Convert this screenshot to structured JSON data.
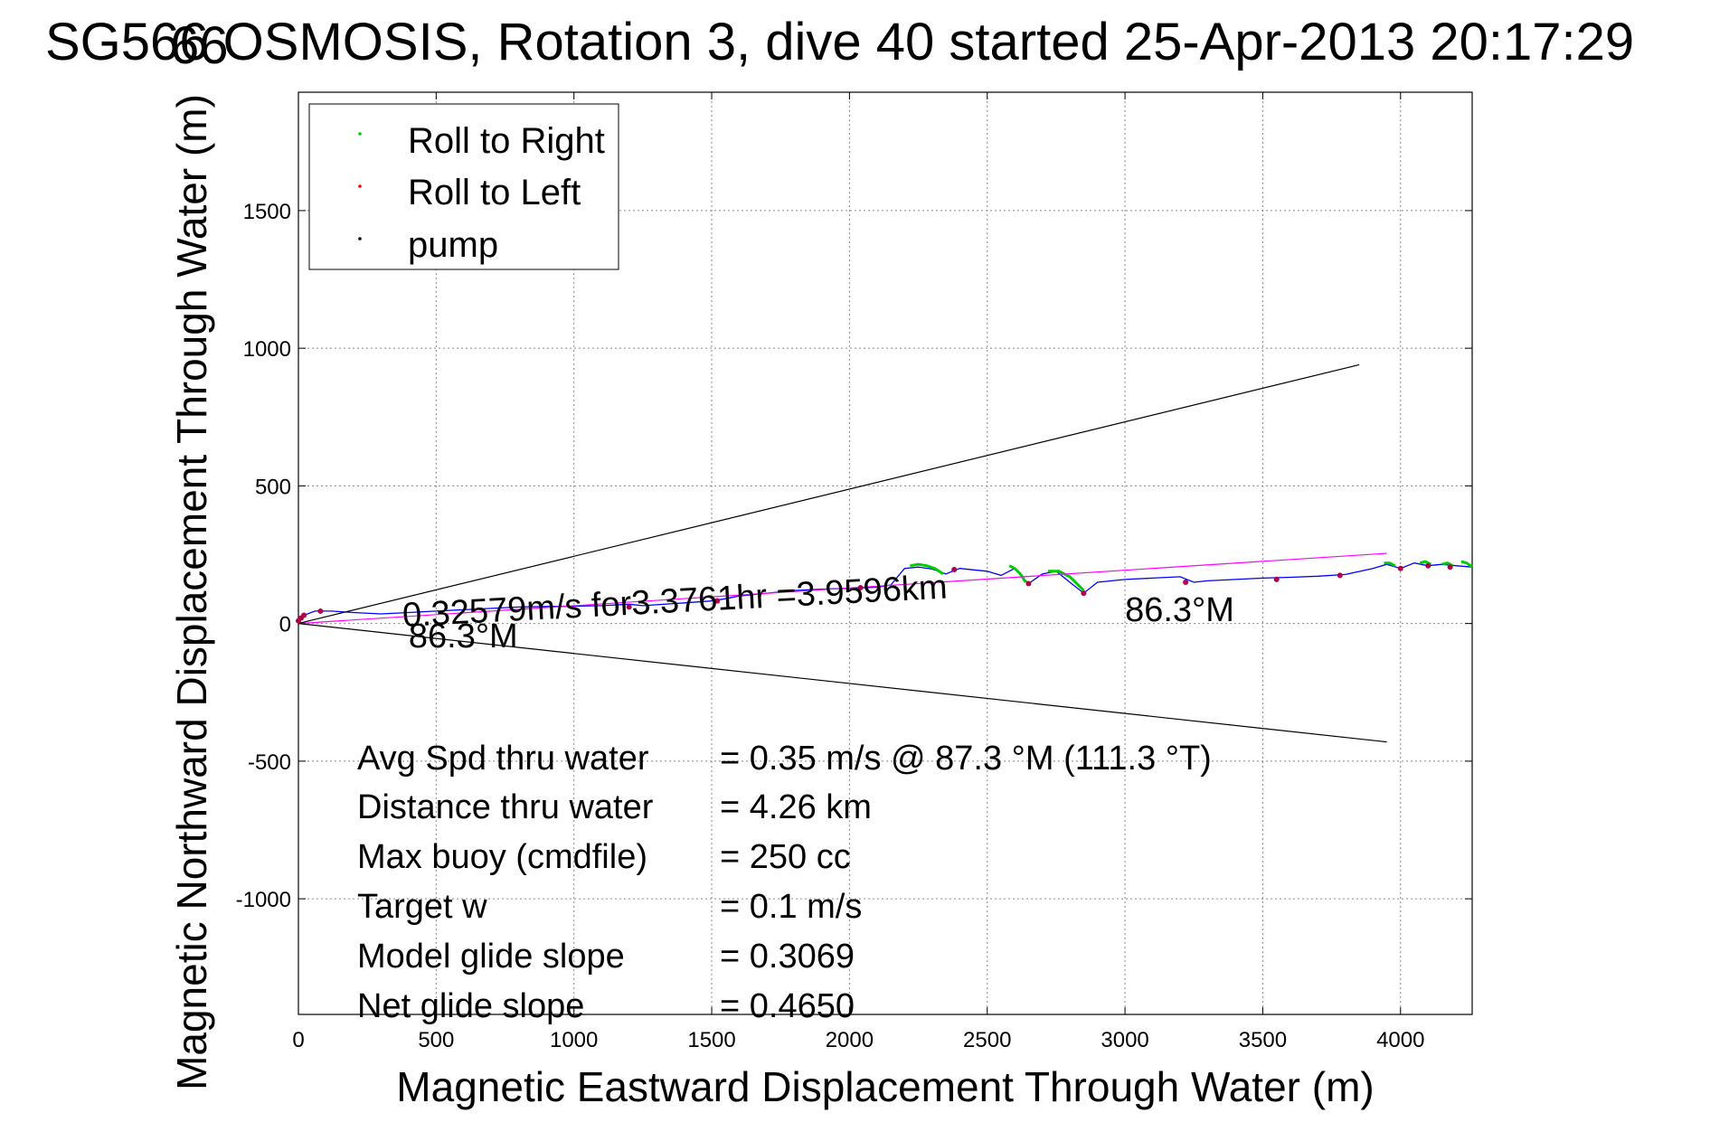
{
  "chart_data": {
    "type": "line",
    "title": "SG566 OSMOSIS, Rotation 3, dive 40 started 25-Apr-2013 20:17:29",
    "title_overlay": "66",
    "xlabel": "Magnetic Eastward Displacement Through Water (m)",
    "ylabel": "Magnetic Northward Displacement Through Water (m)",
    "xlim": [
      0,
      4260
    ],
    "ylim": [
      -1420,
      1930
    ],
    "x_ticks": [
      0,
      500,
      1000,
      1500,
      2000,
      2500,
      3000,
      3500,
      4000
    ],
    "y_ticks": [
      -1000,
      -500,
      0,
      500,
      1000,
      1500
    ],
    "grid": true,
    "legend_position": "top-left",
    "legend": [
      {
        "label": "Roll to Right",
        "color": "#00cc00"
      },
      {
        "label": "Roll to Left",
        "color": "#ff0000"
      },
      {
        "label": "pump",
        "color": "#000000"
      }
    ],
    "series": [
      {
        "name": "track",
        "color": "#0000ff",
        "x": [
          0,
          20,
          60,
          120,
          200,
          300,
          400,
          500,
          600,
          700,
          800,
          900,
          1000,
          1100,
          1200,
          1250,
          1300,
          1400,
          1500,
          1550,
          1600,
          1700,
          1800,
          1900,
          2000,
          2100,
          2150,
          2200,
          2250,
          2300,
          2350,
          2400,
          2450,
          2500,
          2550,
          2600,
          2650,
          2700,
          2750,
          2800,
          2850,
          2900,
          3000,
          3100,
          3200,
          3250,
          3300,
          3400,
          3500,
          3600,
          3700,
          3800,
          3900,
          3950,
          4000,
          4050,
          4100,
          4150,
          4200,
          4260
        ],
        "y": [
          0,
          30,
          45,
          45,
          40,
          35,
          40,
          45,
          50,
          55,
          60,
          62,
          63,
          65,
          70,
          65,
          68,
          75,
          82,
          90,
          100,
          110,
          120,
          125,
          128,
          132,
          140,
          200,
          205,
          198,
          180,
          200,
          195,
          190,
          175,
          200,
          145,
          180,
          190,
          150,
          110,
          150,
          160,
          165,
          170,
          150,
          155,
          160,
          165,
          168,
          172,
          178,
          200,
          215,
          200,
          220,
          210,
          215,
          210,
          205
        ]
      },
      {
        "name": "green-segments",
        "color": "#00cc00",
        "segments": [
          {
            "x": [
              2220,
              2250,
              2280,
              2310,
              2340
            ],
            "y": [
              210,
              215,
              210,
              200,
              180
            ]
          },
          {
            "x": [
              2580,
              2600,
              2620,
              2640
            ],
            "y": [
              210,
              200,
              180,
              150
            ]
          },
          {
            "x": [
              2720,
              2760,
              2800,
              2850
            ],
            "y": [
              190,
              190,
              170,
              120
            ]
          },
          {
            "x": [
              3940,
              3960,
              3980
            ],
            "y": [
              220,
              220,
              210
            ]
          },
          {
            "x": [
              4070,
              4090,
              4110
            ],
            "y": [
              220,
              225,
              215
            ]
          },
          {
            "x": [
              4150,
              4170,
              4190
            ],
            "y": [
              215,
              220,
              210
            ]
          },
          {
            "x": [
              4220,
              4240,
              4260
            ],
            "y": [
              225,
              220,
              205
            ]
          }
        ]
      },
      {
        "name": "trend",
        "color": "#ff00ff",
        "x": [
          0,
          3950
        ],
        "y": [
          0,
          255
        ]
      },
      {
        "name": "cone-upper",
        "color": "#000000",
        "x": [
          0,
          3850
        ],
        "y": [
          0,
          940
        ]
      },
      {
        "name": "cone-lower",
        "color": "#000000",
        "x": [
          0,
          3950
        ],
        "y": [
          0,
          -430
        ]
      }
    ],
    "pump_points": {
      "x": [
        0,
        10,
        20,
        80,
        1200,
        1520,
        2040,
        2380,
        2650,
        2850,
        3220,
        3550,
        3780,
        4000,
        4100,
        4180
      ],
      "y": [
        10,
        20,
        30,
        45,
        60,
        82,
        130,
        196,
        145,
        110,
        150,
        160,
        175,
        200,
        210,
        205
      ]
    },
    "annotations": [
      {
        "text": "0.32579m/s for3.3761hr =3.9596km",
        "x": 380,
        "y": 35
      },
      {
        "text": "86.3°M",
        "x": 400,
        "y": -40
      },
      {
        "text": "86.3°M",
        "x": 3000,
        "y": 55
      }
    ],
    "stats": [
      {
        "label": "Avg Spd thru water",
        "value": "=  0.35 m/s @  87.3 °M (111.3 °T)"
      },
      {
        "label": "Distance thru water",
        "value": "=  4.26 km"
      },
      {
        "label": "Max buoy (cmdfile)",
        "value": "= 250 cc"
      },
      {
        "label": "Target w",
        "value": "= 0.1 m/s"
      },
      {
        "label": "Model glide slope",
        "value": "= 0.3069"
      },
      {
        "label": "Net glide slope",
        "value": "= 0.4650"
      }
    ]
  }
}
